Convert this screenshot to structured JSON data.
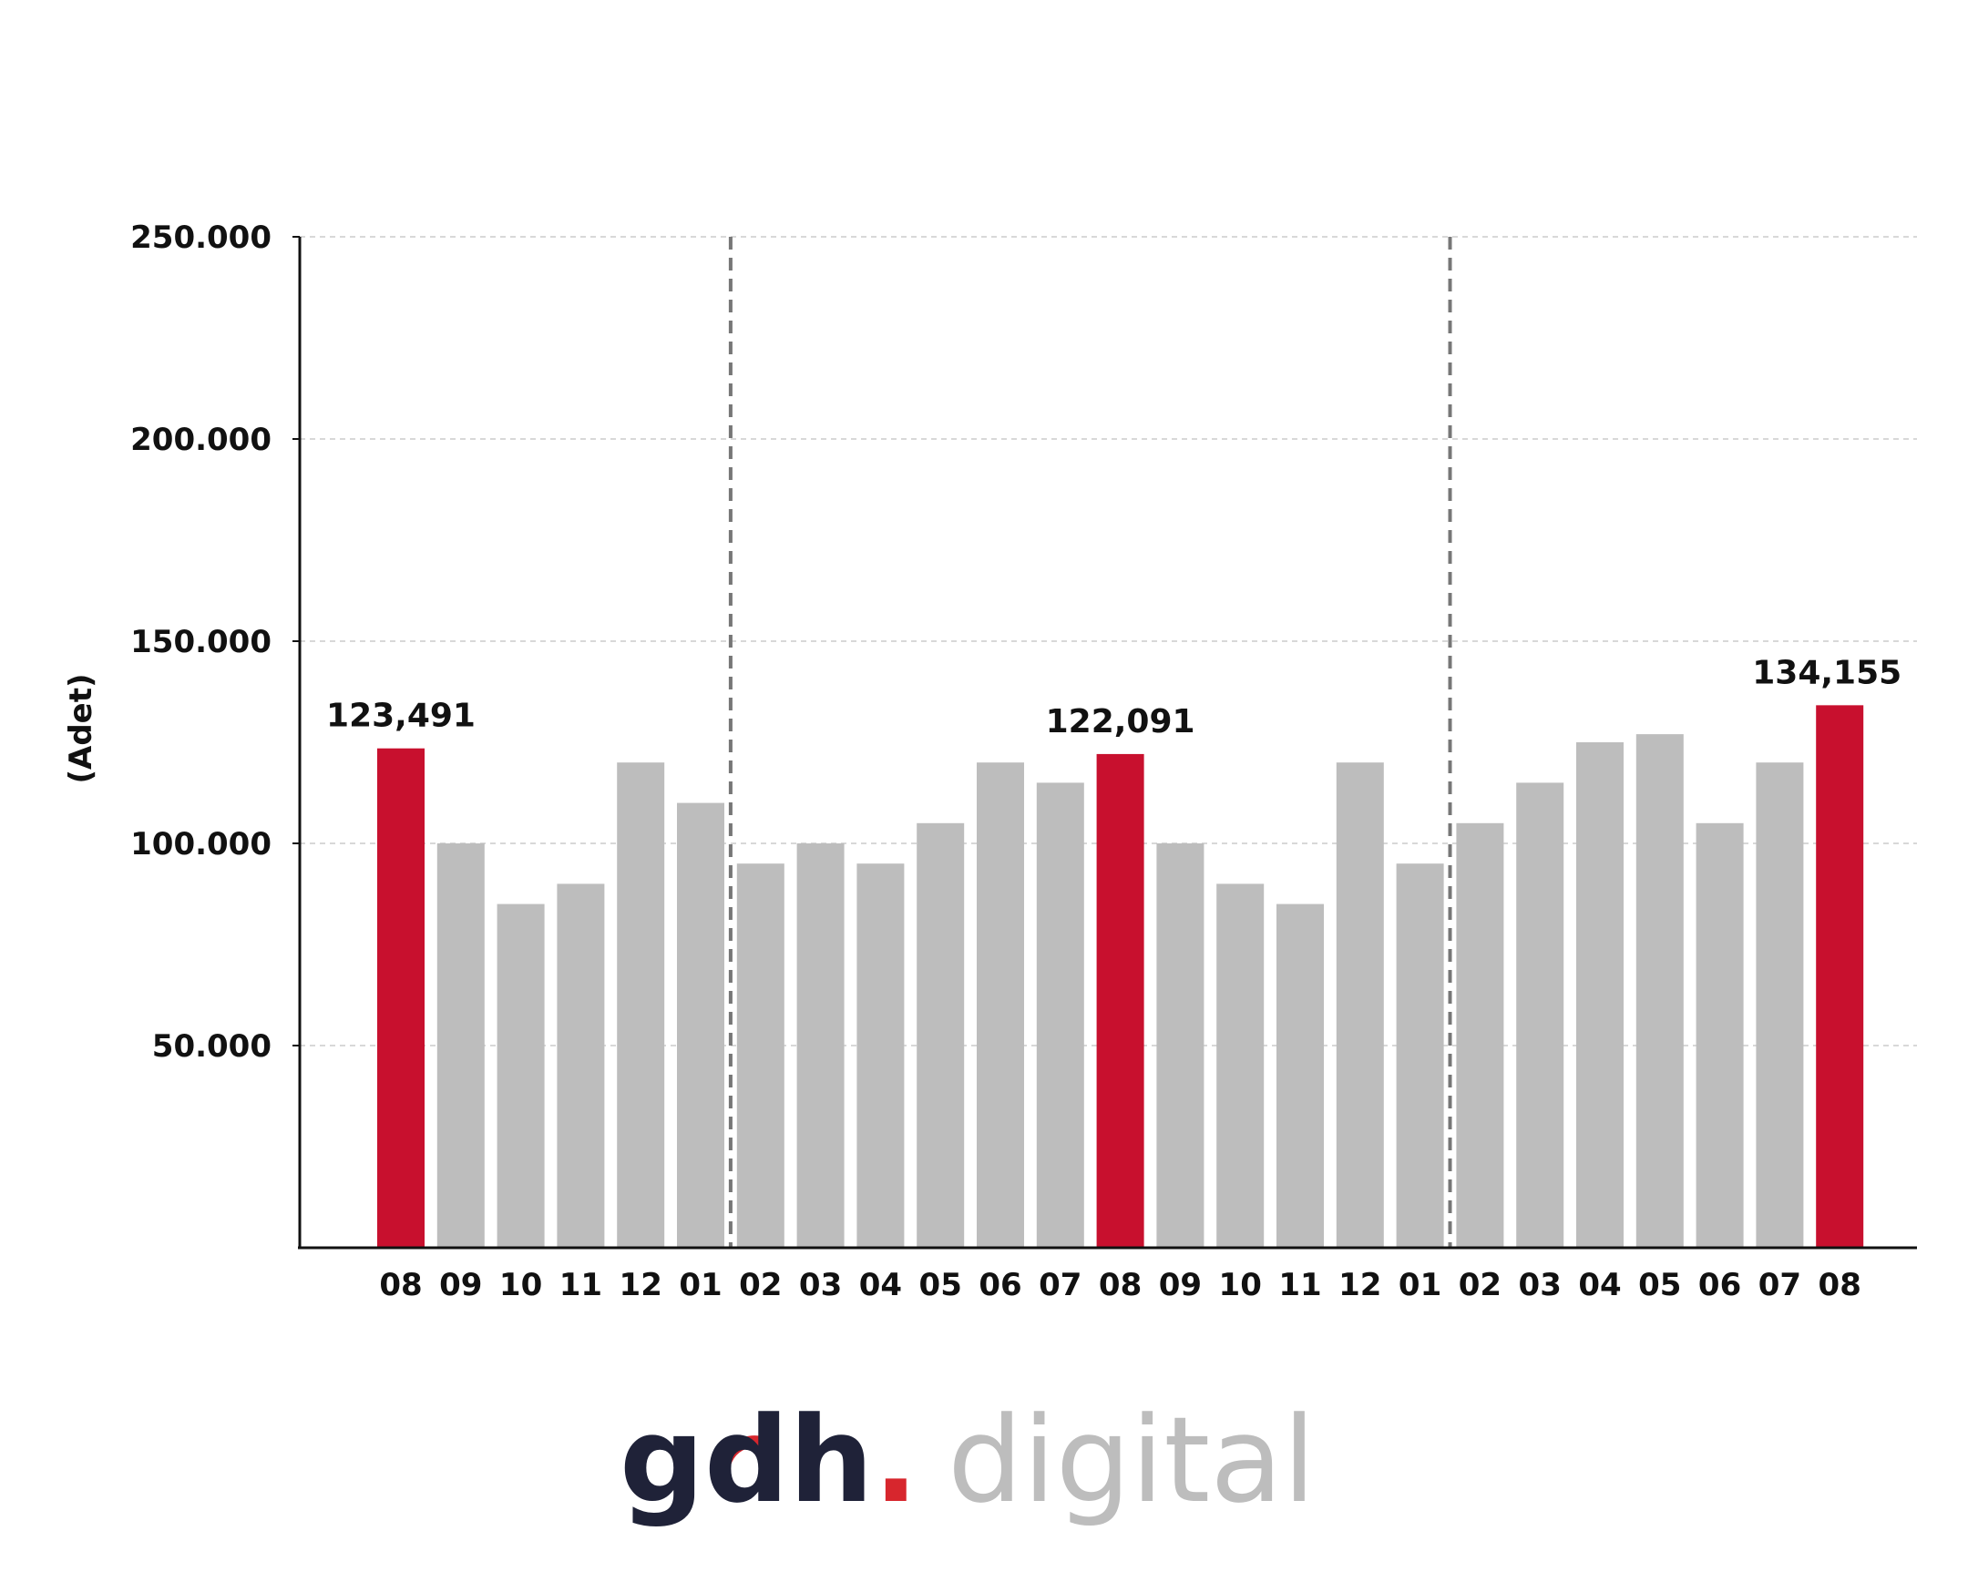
{
  "chart_data": {
    "type": "bar",
    "ylabel": "(Adet)",
    "xlabel": "",
    "ylim": [
      0,
      250000
    ],
    "yticks": [
      {
        "value": 50000,
        "label": "50.000"
      },
      {
        "value": 100000,
        "label": "100.000"
      },
      {
        "value": 150000,
        "label": "150.000"
      },
      {
        "value": 200000,
        "label": "200.000"
      },
      {
        "value": 250000,
        "label": "250.000"
      }
    ],
    "grid": true,
    "categories": [
      "08",
      "09",
      "10",
      "11",
      "12",
      "01",
      "02",
      "03",
      "04",
      "05",
      "06",
      "07",
      "08",
      "09",
      "10",
      "11",
      "12",
      "01",
      "02",
      "03",
      "04",
      "05",
      "06",
      "07",
      "08"
    ],
    "values": [
      123491,
      100000,
      85000,
      90000,
      120000,
      110000,
      95000,
      100000,
      95000,
      105000,
      120000,
      115000,
      122091,
      100000,
      90000,
      85000,
      120000,
      95000,
      105000,
      115000,
      125000,
      127000,
      105000,
      120000,
      134155
    ],
    "highlighted": [
      0,
      12,
      24
    ],
    "data_labels": [
      "123,491",
      "",
      "",
      "",
      "",
      "",
      "",
      "",
      "",
      "",
      "",
      "",
      "122,091",
      "",
      "",
      "",
      "",
      "",
      "",
      "",
      "",
      "",
      "",
      "",
      "134,155"
    ],
    "year_separators_after_index": [
      5,
      17
    ],
    "colors": {
      "highlight": "#c8102e",
      "default": "#bdbdbd",
      "axis": "#111111",
      "grid": "#cccccc",
      "separator": "#777777"
    }
  },
  "logo": {
    "part1": "gdh",
    "dot": ".",
    "part2": "digital",
    "colors": {
      "dark": "#1f2238",
      "accent": "#d7262d",
      "light": "#bdbdbd"
    }
  }
}
